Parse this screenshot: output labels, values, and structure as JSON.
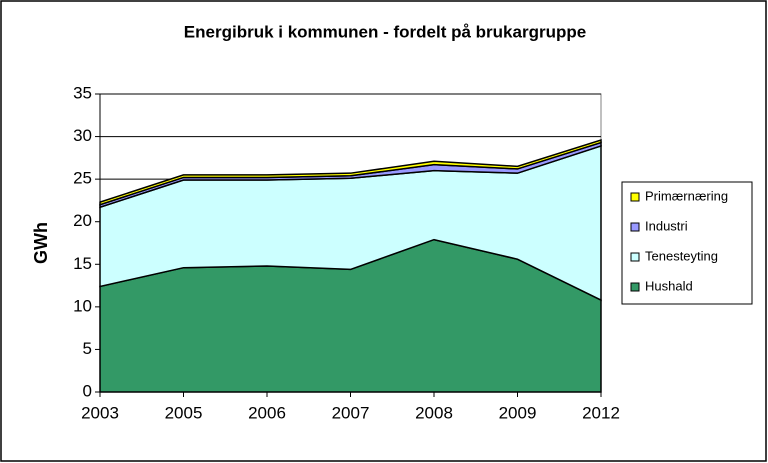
{
  "chart_data": {
    "type": "stacked-area",
    "title": "Energibruk i kommunen - fordelt på brukargruppe",
    "y_label": "GWh",
    "categories": [
      "2003",
      "2005",
      "2006",
      "2007",
      "2008",
      "2009",
      "2012"
    ],
    "series": [
      {
        "name": "Hushald",
        "color": "#339966",
        "values": [
          12.4,
          14.6,
          14.8,
          14.4,
          17.9,
          15.6,
          10.8
        ]
      },
      {
        "name": "Tenesteyting",
        "color": "#ccffff",
        "values": [
          9.3,
          10.3,
          10.1,
          10.7,
          8.1,
          10.1,
          18.1
        ]
      },
      {
        "name": "Industri",
        "color": "#9999ff",
        "values": [
          0.3,
          0.3,
          0.3,
          0.3,
          0.7,
          0.5,
          0.4
        ]
      },
      {
        "name": "Primærnæring",
        "color": "#ffff00",
        "values": [
          0.3,
          0.3,
          0.3,
          0.3,
          0.4,
          0.3,
          0.3
        ]
      }
    ],
    "ylim": [
      0,
      35
    ],
    "yticks": [
      0,
      5,
      10,
      15,
      20,
      25,
      30,
      35
    ],
    "grid": true
  }
}
